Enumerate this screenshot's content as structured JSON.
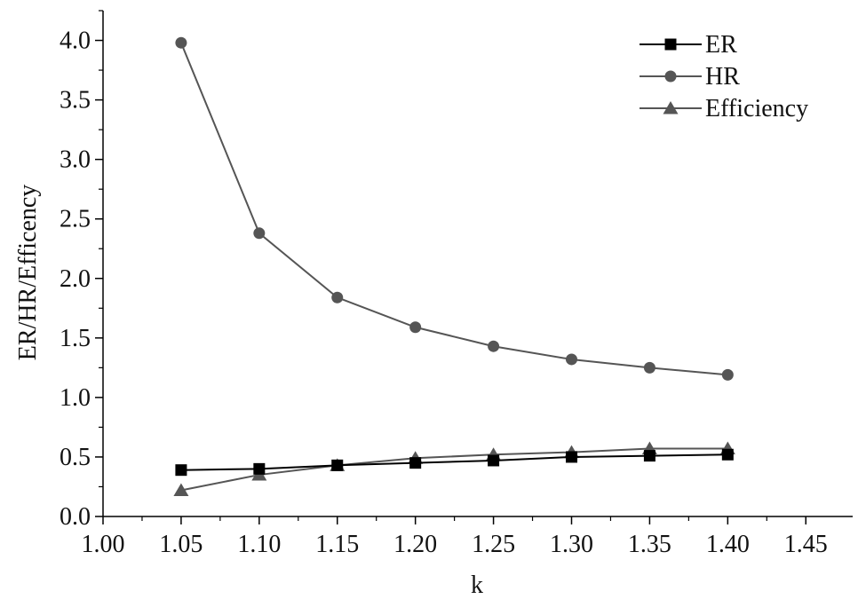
{
  "chart_data": {
    "type": "line",
    "title": "",
    "xlabel": "k",
    "ylabel": "ER/HR/Efficency",
    "xlim": [
      1.0,
      1.48
    ],
    "ylim": [
      0.0,
      4.25
    ],
    "x_ticks": [
      "1.00",
      "1.05",
      "1.10",
      "1.15",
      "1.20",
      "1.25",
      "1.30",
      "1.35",
      "1.40",
      "1.45"
    ],
    "y_ticks": [
      "0.0",
      "0.5",
      "1.0",
      "1.5",
      "2.0",
      "2.5",
      "3.0",
      "3.5",
      "4.0"
    ],
    "grid": false,
    "legend_position": "top-right",
    "x": [
      1.05,
      1.1,
      1.15,
      1.2,
      1.25,
      1.3,
      1.35,
      1.4
    ],
    "series": [
      {
        "name": "ER",
        "marker": "square",
        "color": "#000000",
        "values": [
          0.39,
          0.4,
          0.43,
          0.45,
          0.47,
          0.5,
          0.51,
          0.52
        ]
      },
      {
        "name": "HR",
        "marker": "circle",
        "color": "#555555",
        "values": [
          3.98,
          2.38,
          1.84,
          1.59,
          1.43,
          1.32,
          1.25,
          1.19
        ]
      },
      {
        "name": "Efficiency",
        "marker": "triangle",
        "color": "#555555",
        "values": [
          0.22,
          0.35,
          0.43,
          0.49,
          0.52,
          0.54,
          0.57,
          0.57
        ]
      }
    ]
  }
}
